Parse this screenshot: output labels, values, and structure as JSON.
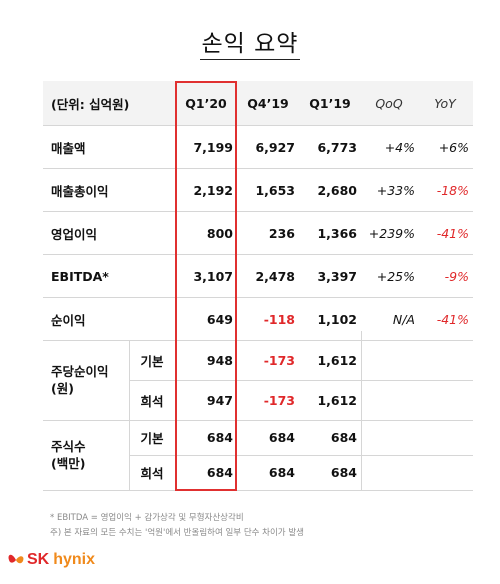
{
  "title": "손익 요약",
  "header": {
    "unit": "(단위: 십억원)",
    "q120": "Q1’20",
    "q419": "Q4’19",
    "q119": "Q1’19",
    "qoq": "QoQ",
    "yoy": "YoY"
  },
  "rows": [
    {
      "label": "매출액",
      "q120": "7,199",
      "q419": "6,927",
      "q119": "6,773",
      "qoq": "+4%",
      "yoy": "+6%"
    },
    {
      "label": "매출총이익",
      "q120": "2,192",
      "q419": "1,653",
      "q119": "2,680",
      "qoq": "+33%",
      "yoy": "-18%"
    },
    {
      "label": "영업이익",
      "q120": "800",
      "q419": "236",
      "q119": "1,366",
      "qoq": "+239%",
      "yoy": "-41%"
    },
    {
      "label": "EBITDA*",
      "q120": "3,107",
      "q419": "2,478",
      "q119": "3,397",
      "qoq": "+25%",
      "yoy": "-9%"
    },
    {
      "label": "순이익",
      "q120": "649",
      "q419": "-118",
      "q119": "1,102",
      "qoq": "N/A",
      "yoy": "-41%"
    }
  ],
  "eps": {
    "label_line1": "주당순이익",
    "label_line2": "(원)",
    "basic": {
      "label": "기본",
      "q120": "948",
      "q419": "-173",
      "q119": "1,612"
    },
    "diluted": {
      "label": "희석",
      "q120": "947",
      "q419": "-173",
      "q119": "1,612"
    }
  },
  "shares": {
    "label_line1": "주식수",
    "label_line2": "(백만)",
    "basic": {
      "label": "기본",
      "q120": "684",
      "q419": "684",
      "q119": "684"
    },
    "diluted": {
      "label": "희석",
      "q120": "684",
      "q419": "684",
      "q119": "684"
    }
  },
  "notes": {
    "line1": "* EBITDA = 영업이익 + 감가상각 및 무형자산상각비",
    "line2": "주) 본 자료의 모든 수치는 '억원'에서 반올림하여 일부 단수 차이가 발생"
  },
  "logo": {
    "sk": "SK",
    "hynix": "hynix"
  },
  "colors": {
    "negative": "#e0282a",
    "highlight": "#e03030",
    "header_bg": "#f3f3f3",
    "logo_red": "#e0282a",
    "logo_orange": "#f08a1c"
  }
}
